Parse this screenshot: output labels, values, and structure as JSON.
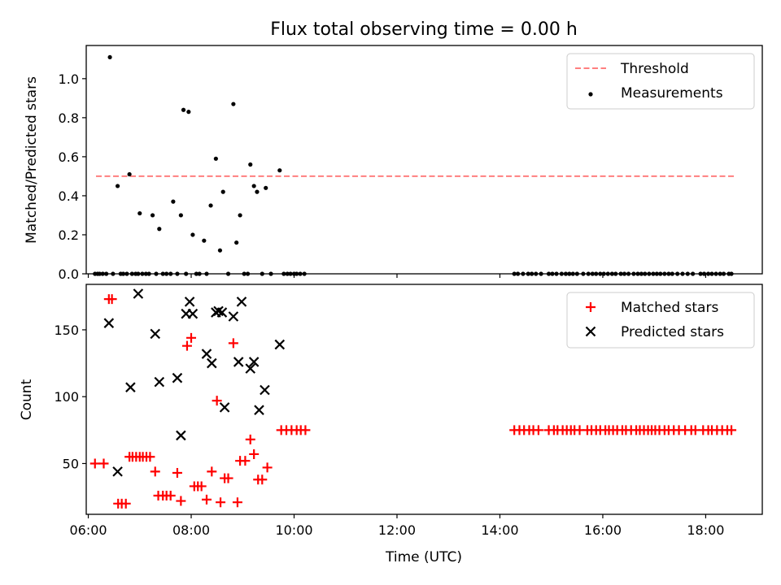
{
  "title": "Flux total observing time = 0.00 h",
  "chart_data": [
    {
      "type": "scatter",
      "ylabel": "Matched/Predicted stars",
      "ylim": [
        0,
        1.17
      ],
      "yticks": [
        0,
        0.2,
        0.4,
        0.6,
        0.8,
        1.0
      ],
      "ytick_labels": [
        "0.0",
        "0.2",
        "0.4",
        "0.6",
        "0.8",
        "1.0"
      ],
      "xlim": [
        5.96,
        19.1
      ],
      "legend_position": "top-right",
      "series": [
        {
          "name": "Threshold",
          "kind": "dashed-line",
          "color": "#ff7f7f",
          "x": [
            6.15,
            18.55
          ],
          "y": [
            0.5,
            0.5
          ]
        },
        {
          "name": "Measurements",
          "kind": "dot",
          "color": "#000000",
          "x": [
            6.13,
            6.18,
            6.22,
            6.28,
            6.35,
            6.42,
            6.48,
            6.57,
            6.63,
            6.68,
            6.75,
            6.8,
            6.85,
            6.92,
            6.97,
            7.0,
            7.05,
            7.12,
            7.18,
            7.25,
            7.32,
            7.38,
            7.45,
            7.52,
            7.6,
            7.65,
            7.73,
            7.8,
            7.85,
            7.9,
            7.95,
            8.03,
            8.1,
            8.16,
            8.25,
            8.3,
            8.38,
            8.48,
            8.56,
            8.62,
            8.72,
            8.82,
            8.88,
            8.95,
            9.03,
            9.1,
            9.15,
            9.22,
            9.28,
            9.38,
            9.45,
            9.55,
            9.72,
            9.8,
            9.87,
            9.93,
            10.0,
            10.05,
            10.12,
            10.2,
            14.28,
            14.35,
            14.45,
            14.55,
            14.62,
            14.7,
            14.8,
            14.95,
            15.02,
            15.1,
            15.2,
            15.28,
            15.35,
            15.42,
            15.5,
            15.62,
            15.72,
            15.8,
            15.87,
            15.95,
            16.02,
            16.1,
            16.18,
            16.25,
            16.35,
            16.42,
            16.5,
            16.6,
            16.68,
            16.75,
            16.82,
            16.9,
            16.98,
            17.05,
            17.12,
            17.2,
            17.28,
            17.35,
            17.45,
            17.55,
            17.65,
            17.75,
            17.9,
            17.97,
            18.05,
            18.12,
            18.2,
            18.28,
            18.35,
            18.45,
            18.5
          ],
          "y": [
            0,
            0,
            0,
            0,
            0,
            1.11,
            0,
            0.45,
            0,
            0,
            0,
            0.51,
            0,
            0,
            0,
            0.31,
            0,
            0,
            0,
            0.3,
            0,
            0.23,
            0,
            0,
            0,
            0.37,
            0,
            0.3,
            0.84,
            0,
            0.83,
            0.2,
            0,
            0,
            0.17,
            0,
            0.35,
            0.59,
            0.12,
            0.42,
            0,
            0.87,
            0.16,
            0.3,
            0,
            0,
            0.56,
            0.45,
            0.42,
            0,
            0.44,
            0,
            0.53,
            0,
            0,
            0,
            0,
            0,
            0,
            0,
            0,
            0,
            0,
            0,
            0,
            0,
            0,
            0,
            0,
            0,
            0,
            0,
            0,
            0,
            0,
            0,
            0,
            0,
            0,
            0,
            0,
            0,
            0,
            0,
            0,
            0,
            0,
            0,
            0,
            0,
            0,
            0,
            0,
            0,
            0,
            0,
            0,
            0,
            0,
            0,
            0,
            0,
            0,
            0,
            0,
            0,
            0,
            0,
            0,
            0,
            0
          ]
        }
      ]
    },
    {
      "type": "scatter",
      "ylabel": "Count",
      "ylim": [
        12,
        184
      ],
      "yticks": [
        50,
        100,
        150
      ],
      "ytick_labels": [
        "50",
        "100",
        "150"
      ],
      "xlabel": "Time (UTC)",
      "xlim": [
        5.96,
        19.1
      ],
      "xticks": [
        6,
        8,
        10,
        12,
        14,
        16,
        18
      ],
      "xtick_labels": [
        "06:00",
        "08:00",
        "10:00",
        "12:00",
        "14:00",
        "16:00",
        "18:00"
      ],
      "legend_position": "top-right",
      "series": [
        {
          "name": "Matched stars",
          "kind": "plus",
          "color": "#ff0000",
          "x": [
            6.13,
            6.3,
            6.4,
            6.46,
            6.58,
            6.65,
            6.73,
            6.8,
            6.86,
            6.93,
            7.0,
            7.06,
            7.13,
            7.2,
            7.3,
            7.36,
            7.45,
            7.52,
            7.6,
            7.73,
            7.8,
            7.92,
            8.0,
            8.06,
            8.13,
            8.2,
            8.3,
            8.4,
            8.5,
            8.57,
            8.65,
            8.72,
            8.82,
            8.9,
            8.95,
            9.05,
            9.15,
            9.22,
            9.3,
            9.38,
            9.48,
            9.75,
            9.85,
            9.95,
            10.05,
            10.13,
            10.22,
            14.28,
            14.38,
            14.47,
            14.57,
            14.65,
            14.75,
            14.95,
            15.05,
            15.12,
            15.22,
            15.3,
            15.38,
            15.45,
            15.55,
            15.7,
            15.78,
            15.87,
            15.95,
            16.05,
            16.12,
            16.2,
            16.28,
            16.38,
            16.45,
            16.55,
            16.65,
            16.72,
            16.8,
            16.88,
            16.95,
            17.02,
            17.1,
            17.2,
            17.28,
            17.38,
            17.48,
            17.6,
            17.72,
            17.8,
            17.95,
            18.05,
            18.12,
            18.22,
            18.32,
            18.42,
            18.5
          ],
          "y": [
            50,
            50,
            173,
            173,
            20,
            20,
            20,
            55,
            55,
            55,
            55,
            55,
            55,
            55,
            44,
            26,
            26,
            26,
            26,
            43,
            22,
            138,
            144,
            33,
            33,
            33,
            23,
            44,
            97,
            21,
            39,
            39,
            140,
            21,
            52,
            52,
            68,
            57,
            38,
            38,
            47,
            75,
            75,
            75,
            75,
            75,
            75,
            75,
            75,
            75,
            75,
            75,
            75,
            75,
            75,
            75,
            75,
            75,
            75,
            75,
            75,
            75,
            75,
            75,
            75,
            75,
            75,
            75,
            75,
            75,
            75,
            75,
            75,
            75,
            75,
            75,
            75,
            75,
            75,
            75,
            75,
            75,
            75,
            75,
            75,
            75,
            75,
            75,
            75,
            75,
            75,
            75,
            75
          ]
        },
        {
          "name": "Predicted stars",
          "kind": "x",
          "color": "#000000",
          "x": [
            6.4,
            6.57,
            6.82,
            6.97,
            7.3,
            7.38,
            7.73,
            7.8,
            7.9,
            7.97,
            8.03,
            8.3,
            8.4,
            8.48,
            8.53,
            8.6,
            8.65,
            8.82,
            8.92,
            8.98,
            9.15,
            9.22,
            9.32,
            9.43,
            9.72
          ],
          "y": [
            155,
            44,
            107,
            177,
            147,
            111,
            114,
            71,
            162,
            171,
            162,
            132,
            125,
            163,
            164,
            163,
            92,
            160,
            126,
            171,
            121,
            126,
            90,
            105,
            139
          ]
        }
      ]
    }
  ]
}
